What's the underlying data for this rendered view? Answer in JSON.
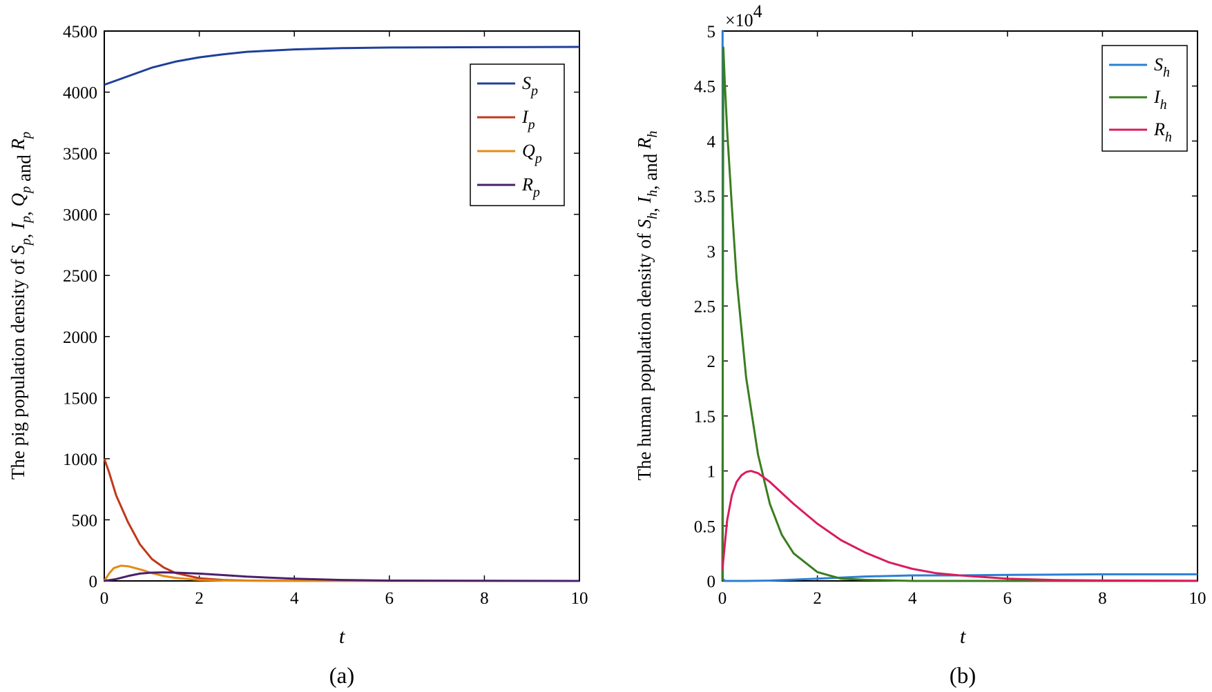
{
  "chart_data": [
    {
      "type": "line",
      "panel": "(a)",
      "xlabel": "t",
      "ylabel_prefix": "The pig population density of",
      "ylabel_symbols": [
        "S",
        "I",
        "Q",
        "R"
      ],
      "ylabel_sub": "p",
      "ylabel_and": "and",
      "xlim": [
        0,
        10
      ],
      "ylim": [
        0,
        4500
      ],
      "xticks": [
        0,
        2,
        4,
        6,
        8,
        10
      ],
      "yticks": [
        0,
        500,
        1000,
        1500,
        2000,
        2500,
        3000,
        3500,
        4000,
        4500
      ],
      "legend_position": "top-right",
      "series": [
        {
          "name": "S",
          "sub": "p",
          "color": "#1f3f99",
          "x": [
            0,
            0.5,
            1,
            1.5,
            2,
            2.5,
            3,
            4,
            5,
            6,
            8,
            10
          ],
          "y": [
            4060,
            4130,
            4200,
            4250,
            4285,
            4310,
            4330,
            4350,
            4360,
            4365,
            4368,
            4370
          ]
        },
        {
          "name": "I",
          "sub": "p",
          "color": "#c0391a",
          "x": [
            0,
            0.1,
            0.25,
            0.5,
            0.75,
            1,
            1.25,
            1.5,
            2,
            2.5,
            3,
            4,
            6,
            10
          ],
          "y": [
            1000,
            890,
            700,
            480,
            300,
            180,
            110,
            65,
            22,
            8,
            3,
            1,
            0,
            0
          ]
        },
        {
          "name": "Q",
          "sub": "p",
          "color": "#e48a14",
          "x": [
            0,
            0.1,
            0.2,
            0.35,
            0.5,
            0.75,
            1,
            1.25,
            1.5,
            2,
            2.5,
            3,
            4,
            10
          ],
          "y": [
            0,
            60,
            105,
            125,
            120,
            95,
            65,
            40,
            25,
            8,
            3,
            1,
            0,
            0
          ]
        },
        {
          "name": "R",
          "sub": "p",
          "color": "#4a1f6b",
          "x": [
            0,
            0.25,
            0.5,
            0.75,
            1,
            1.25,
            1.5,
            2,
            2.5,
            3,
            4,
            5,
            6,
            8,
            10
          ],
          "y": [
            0,
            15,
            40,
            60,
            68,
            70,
            68,
            60,
            48,
            35,
            18,
            8,
            3,
            1,
            0
          ]
        }
      ],
      "caption": "(a)"
    },
    {
      "type": "line",
      "panel": "(b)",
      "xlabel": "t",
      "ylabel_prefix": "The human population density of",
      "ylabel_symbols": [
        "S",
        "I",
        "R"
      ],
      "ylabel_sub": "h",
      "ylabel_and": "and",
      "multiplier_base": "×10",
      "multiplier_exp": "4",
      "xlim": [
        0,
        10
      ],
      "ylim": [
        0,
        5
      ],
      "xticks": [
        0,
        2,
        4,
        6,
        8,
        10
      ],
      "yticks": [
        0,
        0.5,
        1,
        1.5,
        2,
        2.5,
        3,
        3.5,
        4,
        4.5,
        5
      ],
      "legend_position": "top-right",
      "series": [
        {
          "name": "S",
          "sub": "h",
          "color": "#2a7fd4",
          "x": [
            0,
            0.005,
            0.01,
            0.05,
            0.5,
            1,
            2,
            3,
            4,
            5,
            6,
            8,
            10
          ],
          "y": [
            5.0,
            5.0,
            0.02,
            0.0,
            0.0,
            0.003,
            0.02,
            0.04,
            0.05,
            0.05,
            0.055,
            0.06,
            0.06
          ]
        },
        {
          "name": "I",
          "sub": "h",
          "color": "#3a7d1f",
          "x": [
            0,
            0.02,
            0.05,
            0.1,
            0.2,
            0.3,
            0.5,
            0.75,
            1,
            1.25,
            1.5,
            2,
            2.5,
            3,
            4,
            10
          ],
          "y": [
            0,
            4.85,
            4.55,
            4.1,
            3.4,
            2.75,
            1.85,
            1.15,
            0.7,
            0.42,
            0.25,
            0.08,
            0.02,
            0.01,
            0,
            0
          ]
        },
        {
          "name": "R",
          "sub": "h",
          "color": "#d91c5c",
          "x": [
            0,
            0.1,
            0.2,
            0.3,
            0.4,
            0.5,
            0.6,
            0.75,
            1,
            1.25,
            1.5,
            2,
            2.5,
            3,
            3.5,
            4,
            4.5,
            5,
            6,
            7,
            8,
            10
          ],
          "y": [
            0.1,
            0.55,
            0.78,
            0.9,
            0.96,
            0.99,
            1.0,
            0.98,
            0.9,
            0.8,
            0.7,
            0.52,
            0.37,
            0.26,
            0.17,
            0.11,
            0.07,
            0.05,
            0.02,
            0.008,
            0.004,
            0.001
          ]
        }
      ],
      "caption": "(b)"
    }
  ]
}
